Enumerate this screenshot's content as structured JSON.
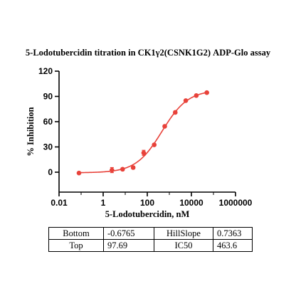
{
  "chart_data": {
    "type": "scatter",
    "title": "5-Lodotubercidin titration in CK1γ2(CSNK1G2) ADP-Glo assay",
    "xlabel": "5-Lodotubercidin, nM",
    "ylabel": "% Inhibition",
    "x_scale": "log",
    "xlim": [
      0.01,
      1000000
    ],
    "ylim": [
      -20,
      120
    ],
    "x_ticks": [
      0.01,
      1,
      100,
      10000,
      1000000
    ],
    "x_tick_labels": [
      "0.01",
      "1",
      "100",
      "10000",
      "1000000"
    ],
    "y_ticks": [
      0,
      30,
      60,
      90,
      120
    ],
    "y_tick_labels": [
      "0",
      "30",
      "60",
      "90",
      "120"
    ],
    "grid": false,
    "series": [
      {
        "color": "#e8423a",
        "x": [
          0.08,
          2.5,
          7.6,
          22.9,
          68.6,
          206,
          617,
          1852,
          5556,
          16667,
          50000
        ],
        "y": [
          -1,
          2.5,
          3.5,
          5.5,
          23,
          32.5,
          54.5,
          71,
          85,
          91,
          94.5
        ],
        "error": [
          0,
          3,
          1.5,
          1.5,
          3,
          1.5,
          1.5,
          1.5,
          1,
          1,
          1
        ]
      }
    ],
    "fit": {
      "model": "four-parameter logistic",
      "bottom": -0.6765,
      "top": 97.69,
      "hill_slope": 0.7363,
      "ic50": 463.6
    }
  },
  "table": {
    "rows": [
      [
        "Bottom",
        "-0.6765",
        "HillSlope",
        "0.7363"
      ],
      [
        "Top",
        "97.69",
        "IC50",
        "463.6"
      ]
    ]
  }
}
